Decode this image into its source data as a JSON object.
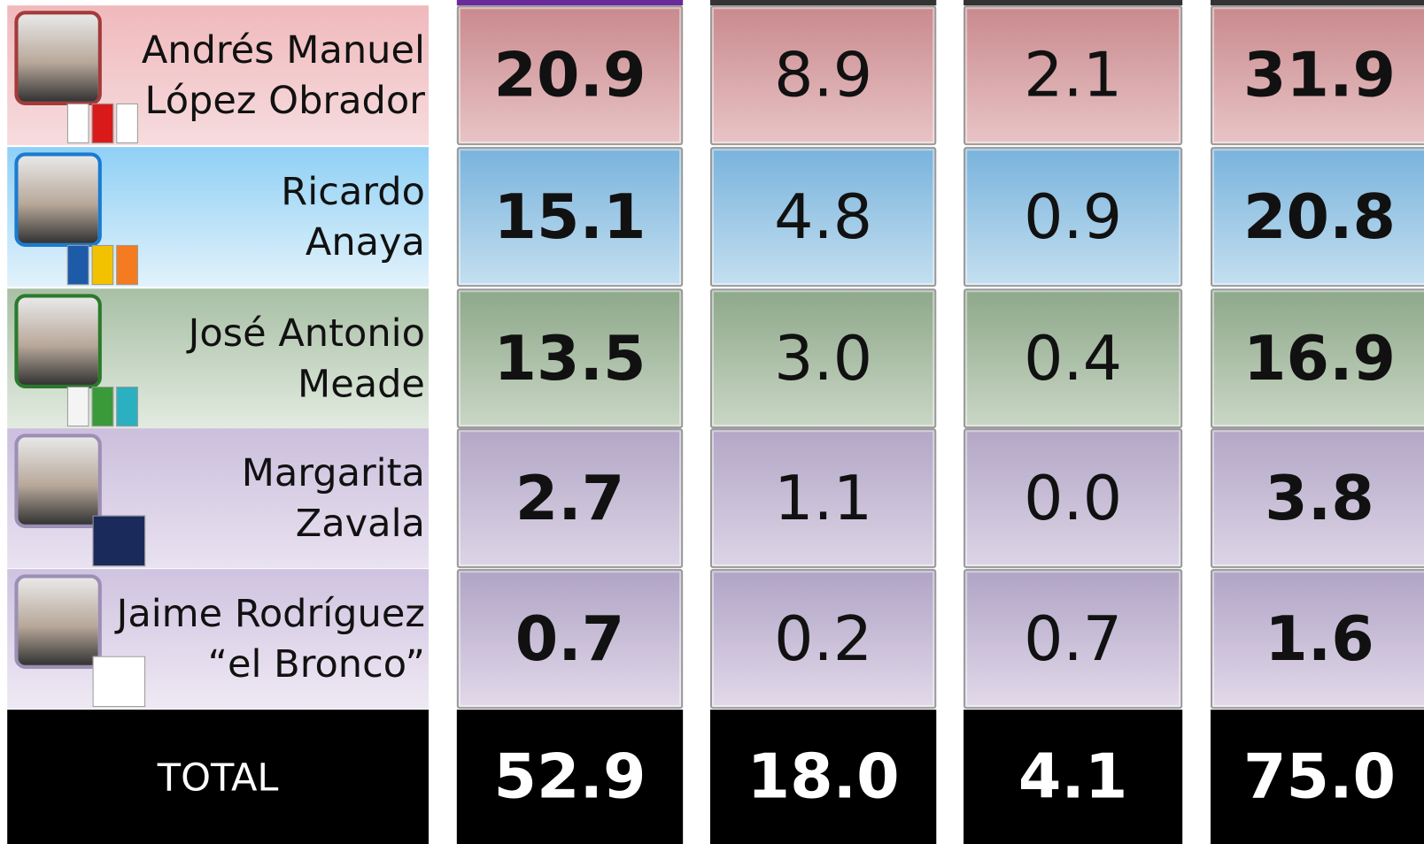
{
  "table": {
    "rows": [
      {
        "name": [
          "Andrés Manuel",
          "López Obrador"
        ],
        "values": [
          "20.9",
          "8.9",
          "2.1",
          "31.9"
        ]
      },
      {
        "name": [
          "Ricardo",
          "Anaya"
        ],
        "values": [
          "15.1",
          "4.8",
          "0.9",
          "20.8"
        ]
      },
      {
        "name": [
          "José Antonio",
          "Meade"
        ],
        "values": [
          "13.5",
          "3.0",
          "0.4",
          "16.9"
        ]
      },
      {
        "name": [
          "Margarita",
          "Zavala"
        ],
        "values": [
          "2.7",
          "1.1",
          "0.0",
          "3.8"
        ]
      },
      {
        "name": [
          "Jaime Rodríguez",
          "“el Bronco”"
        ],
        "values": [
          "0.7",
          "0.2",
          "0.7",
          "1.6"
        ]
      }
    ],
    "total": {
      "label": "TOTAL",
      "values": [
        "52.9",
        "18.0",
        "4.1",
        "75.0"
      ]
    }
  }
}
